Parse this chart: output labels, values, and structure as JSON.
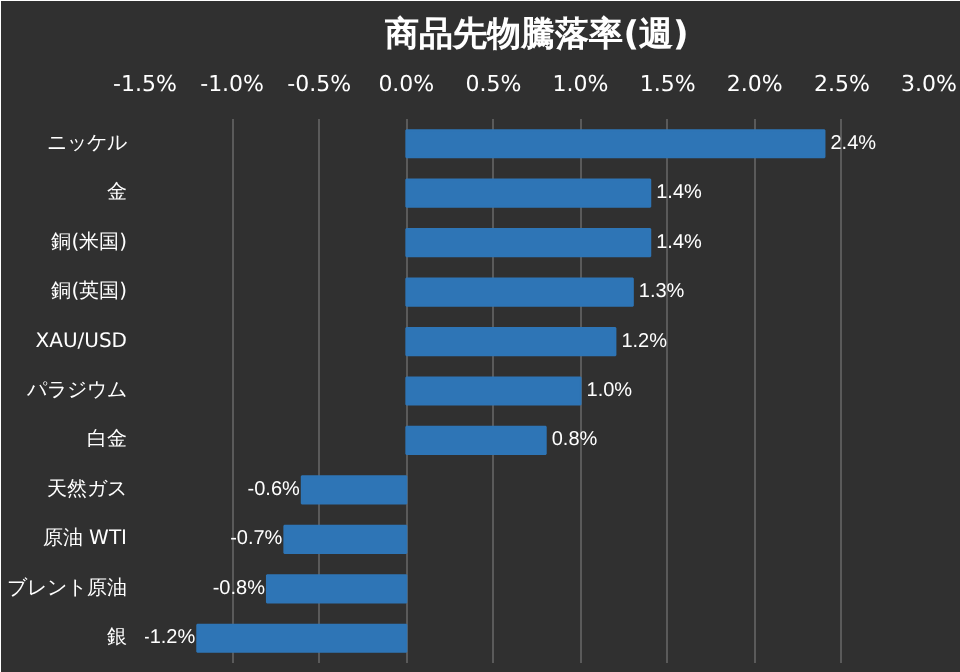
{
  "chart_data": {
    "type": "bar",
    "orientation": "horizontal",
    "title": "商品先物騰落率(週)",
    "categories": [
      "ニッケル",
      "金",
      "銅(米国)",
      "銅(英国)",
      "XAU/USD",
      "パラジウム",
      "白金",
      "天然ガス",
      "原油 WTI",
      "ブレント原油",
      "銀"
    ],
    "values": [
      2.4,
      1.4,
      1.4,
      1.3,
      1.2,
      1.0,
      0.8,
      -0.6,
      -0.7,
      -0.8,
      -1.2
    ],
    "value_labels": [
      "2.4%",
      "1.4%",
      "1.4%",
      "1.3%",
      "1.2%",
      "1.0%",
      "0.8%",
      "-0.6%",
      "-0.7%",
      "-0.8%",
      "-1.2%"
    ],
    "color": "#2e75b6",
    "xlim": [
      -1.5,
      3.0
    ],
    "xticks": [
      {
        "value": -1.5,
        "label": "-1.5%"
      },
      {
        "value": -1.0,
        "label": "-1.0%"
      },
      {
        "value": -0.5,
        "label": "-0.5%"
      },
      {
        "value": 0.0,
        "label": "0.0%"
      },
      {
        "value": 0.5,
        "label": "0.5%"
      },
      {
        "value": 1.0,
        "label": "1.0%"
      },
      {
        "value": 1.5,
        "label": "1.5%"
      },
      {
        "value": 2.0,
        "label": "2.0%"
      },
      {
        "value": 2.5,
        "label": "2.5%"
      },
      {
        "value": 3.0,
        "label": "3.0%"
      }
    ],
    "grid": "x"
  }
}
